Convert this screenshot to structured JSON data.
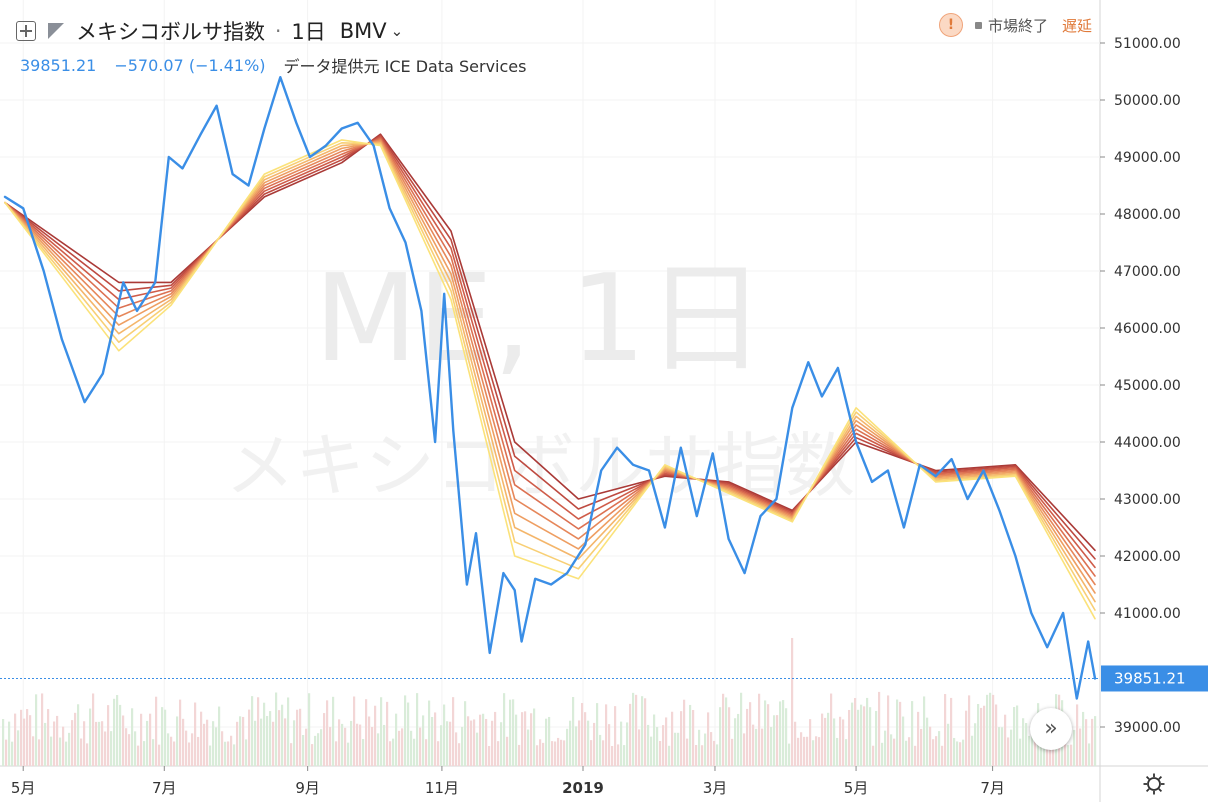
{
  "header": {
    "symbol_name": "メキシコボルサ指数",
    "separator": "·",
    "interval": "1日",
    "exchange": "BMV",
    "last_price": "39851.21",
    "change": "−570.07 (−1.41%)",
    "data_provider": "データ提供元 ICE Data Services",
    "market_status": "市場終了",
    "delay_label": "遅延"
  },
  "watermark": {
    "line1": "ME, 1日",
    "line2": "メキシコボルサ指数"
  },
  "colors": {
    "price_line": "#3a8ee6",
    "ribbon": [
      "#fbe27a",
      "#f8cf75",
      "#f4b66b",
      "#ee9e62",
      "#e6875a",
      "#dc7152",
      "#cf5c49",
      "#be4a40",
      "#aa3a37"
    ],
    "last_price_label_bg": "#3a8ee6",
    "volume_up": "#d9ecd9",
    "volume_down": "#f3d6d6"
  },
  "chart_data": {
    "type": "line",
    "title": "メキシコボルサ指数",
    "x_tick_labels": [
      "5月",
      "7月",
      "9月",
      "11月",
      "2019",
      "3月",
      "5月",
      "7月"
    ],
    "y_tick_labels": [
      "51000.00",
      "50000.00",
      "49000.00",
      "48000.00",
      "47000.00",
      "46000.00",
      "45000.00",
      "44000.00",
      "43000.00",
      "42000.00",
      "41000.00",
      "39000.00"
    ],
    "ylim": [
      38600,
      51500
    ],
    "last_value": 39851.21,
    "last_value_label": "39851.21",
    "grid": true,
    "series": [
      {
        "x": [
          "2018-04-23",
          "2018-05-01",
          "2018-05-10",
          "2018-05-18",
          "2018-05-28",
          "2018-06-05",
          "2018-06-14",
          "2018-06-20",
          "2018-06-28",
          "2018-07-04",
          "2018-07-10",
          "2018-07-18",
          "2018-07-25",
          "2018-08-01",
          "2018-08-08",
          "2018-08-15",
          "2018-08-22",
          "2018-08-29",
          "2018-09-04",
          "2018-09-11",
          "2018-09-18",
          "2018-09-25",
          "2018-10-02",
          "2018-10-09",
          "2018-10-16",
          "2018-10-23",
          "2018-10-29",
          "2018-11-02",
          "2018-11-06",
          "2018-11-12",
          "2018-11-16",
          "2018-11-22",
          "2018-11-28",
          "2018-12-03",
          "2018-12-06",
          "2018-12-12",
          "2018-12-19",
          "2018-12-26",
          "2019-01-03",
          "2019-01-10",
          "2019-01-17",
          "2019-01-24",
          "2019-01-31",
          "2019-02-07",
          "2019-02-14",
          "2019-02-21",
          "2019-02-28",
          "2019-03-07",
          "2019-03-14",
          "2019-03-21",
          "2019-03-28",
          "2019-04-04",
          "2019-04-11",
          "2019-04-17",
          "2019-04-24",
          "2019-05-02",
          "2019-05-09",
          "2019-05-16",
          "2019-05-23",
          "2019-05-30",
          "2019-06-06",
          "2019-06-13",
          "2019-06-20",
          "2019-06-27",
          "2019-07-04",
          "2019-07-11",
          "2019-07-18",
          "2019-07-25",
          "2019-08-01",
          "2019-08-07",
          "2019-08-12",
          "2019-08-15"
        ],
        "values": [
          48300,
          48100,
          47000,
          45800,
          44700,
          45200,
          46800,
          46300,
          46800,
          49000,
          48800,
          49400,
          49900,
          48700,
          48500,
          49500,
          50400,
          49600,
          49000,
          49200,
          49500,
          49600,
          49200,
          48100,
          47500,
          46300,
          44000,
          46600,
          44200,
          41500,
          42400,
          40300,
          41700,
          41400,
          40500,
          41600,
          41500,
          41700,
          42200,
          43500,
          43900,
          43600,
          43500,
          42500,
          43900,
          42700,
          43800,
          42300,
          41700,
          42700,
          43000,
          44600,
          45400,
          44800,
          45300,
          44000,
          43300,
          43500,
          42500,
          43600,
          43400,
          43700,
          43000,
          43500,
          42800,
          42000,
          41000,
          40400,
          41000,
          39500,
          40500,
          39851.21
        ]
      },
      {
        "name": "",
        "x": [
          "2018-04-23",
          "2018-06-12",
          "2018-07-05",
          "2018-08-15",
          "2018-09-18",
          "2018-10-05",
          "2018-11-05",
          "2018-12-03",
          "2018-12-31",
          "2019-02-07",
          "2019-03-07",
          "2019-04-04",
          "2019-05-02",
          "2019-06-06",
          "2019-07-11",
          "2019-08-15"
        ],
        "values": [
          48200,
          45600,
          46400,
          48700,
          49300,
          49200,
          46500,
          42000,
          41600,
          43600,
          43100,
          42600,
          44600,
          43300,
          43400,
          40900
        ]
      },
      {
        "name": "",
        "x": [
          "2018-04-23",
          "2018-06-12",
          "2018-07-05",
          "2018-08-15",
          "2018-09-18",
          "2018-10-05",
          "2018-11-05",
          "2018-12-03",
          "2018-12-31",
          "2019-02-07",
          "2019-03-07",
          "2019-04-04",
          "2019-05-02",
          "2019-06-06",
          "2019-07-11",
          "2019-08-15"
        ],
        "values": [
          48200,
          45750,
          46450,
          48650,
          49250,
          49225,
          46650,
          42250,
          41775,
          43575,
          43125,
          42625,
          44525,
          43325,
          43425,
          41050
        ]
      },
      {
        "name": "",
        "x": [
          "2018-04-23",
          "2018-06-12",
          "2018-07-05",
          "2018-08-15",
          "2018-09-18",
          "2018-10-05",
          "2018-11-05",
          "2018-12-03",
          "2018-12-31",
          "2019-02-07",
          "2019-03-07",
          "2019-04-04",
          "2019-05-02",
          "2019-06-06",
          "2019-07-11",
          "2019-08-15"
        ],
        "values": [
          48200,
          45900,
          46500,
          48600,
          49200,
          49250,
          46800,
          42500,
          41950,
          43550,
          43150,
          42650,
          44450,
          43350,
          43450,
          41200
        ]
      },
      {
        "name": "",
        "x": [
          "2018-04-23",
          "2018-06-12",
          "2018-07-05",
          "2018-08-15",
          "2018-09-18",
          "2018-10-05",
          "2018-11-05",
          "2018-12-03",
          "2018-12-31",
          "2019-02-07",
          "2019-03-07",
          "2019-04-04",
          "2019-05-02",
          "2019-06-06",
          "2019-07-11",
          "2019-08-15"
        ],
        "values": [
          48200,
          46050,
          46550,
          48550,
          49150,
          49275,
          46950,
          42750,
          42125,
          43525,
          43175,
          42675,
          44375,
          43375,
          43475,
          41350
        ]
      },
      {
        "name": "",
        "x": [
          "2018-04-23",
          "2018-06-12",
          "2018-07-05",
          "2018-08-15",
          "2018-09-18",
          "2018-10-05",
          "2018-11-05",
          "2018-12-03",
          "2018-12-31",
          "2019-02-07",
          "2019-03-07",
          "2019-04-04",
          "2019-05-02",
          "2019-06-06",
          "2019-07-11",
          "2019-08-15"
        ],
        "values": [
          48200,
          46200,
          46600,
          48500,
          49100,
          49300,
          47100,
          43000,
          42300,
          43500,
          43200,
          42700,
          44300,
          43400,
          43500,
          41500
        ]
      },
      {
        "name": "",
        "x": [
          "2018-04-23",
          "2018-06-12",
          "2018-07-05",
          "2018-08-15",
          "2018-09-18",
          "2018-10-05",
          "2018-11-05",
          "2018-12-03",
          "2018-12-31",
          "2019-02-07",
          "2019-03-07",
          "2019-04-04",
          "2019-05-02",
          "2019-06-06",
          "2019-07-11",
          "2019-08-15"
        ],
        "values": [
          48200,
          46350,
          46650,
          48450,
          49050,
          49325,
          47250,
          43250,
          42475,
          43475,
          43225,
          42725,
          44225,
          43425,
          43525,
          41650
        ]
      },
      {
        "name": "",
        "x": [
          "2018-04-23",
          "2018-06-12",
          "2018-07-05",
          "2018-08-15",
          "2018-09-18",
          "2018-10-05",
          "2018-11-05",
          "2018-12-03",
          "2018-12-31",
          "2019-02-07",
          "2019-03-07",
          "2019-04-04",
          "2019-05-02",
          "2019-06-06",
          "2019-07-11",
          "2019-08-15"
        ],
        "values": [
          48200,
          46500,
          46700,
          48400,
          49000,
          49350,
          47400,
          43500,
          42650,
          43450,
          43250,
          42750,
          44150,
          43450,
          43550,
          41800
        ]
      },
      {
        "name": "",
        "x": [
          "2018-04-23",
          "2018-06-12",
          "2018-07-05",
          "2018-08-15",
          "2018-09-18",
          "2018-10-05",
          "2018-11-05",
          "2018-12-03",
          "2018-12-31",
          "2019-02-07",
          "2019-03-07",
          "2019-04-04",
          "2019-05-02",
          "2019-06-06",
          "2019-07-11",
          "2019-08-15"
        ],
        "values": [
          48200,
          46650,
          46750,
          48350,
          48950,
          49375,
          47550,
          43750,
          42825,
          43425,
          43275,
          42775,
          44075,
          43475,
          43575,
          41950
        ]
      },
      {
        "name": "",
        "x": [
          "2018-04-23",
          "2018-06-12",
          "2018-07-05",
          "2018-08-15",
          "2018-09-18",
          "2018-10-05",
          "2018-11-05",
          "2018-12-03",
          "2018-12-31",
          "2019-02-07",
          "2019-03-07",
          "2019-04-04",
          "2019-05-02",
          "2019-06-06",
          "2019-07-11",
          "2019-08-15"
        ],
        "values": [
          48200,
          46800,
          46800,
          48300,
          48900,
          49400,
          47700,
          44000,
          43000,
          43400,
          43300,
          42800,
          44000,
          43500,
          43600,
          42100
        ]
      }
    ]
  }
}
